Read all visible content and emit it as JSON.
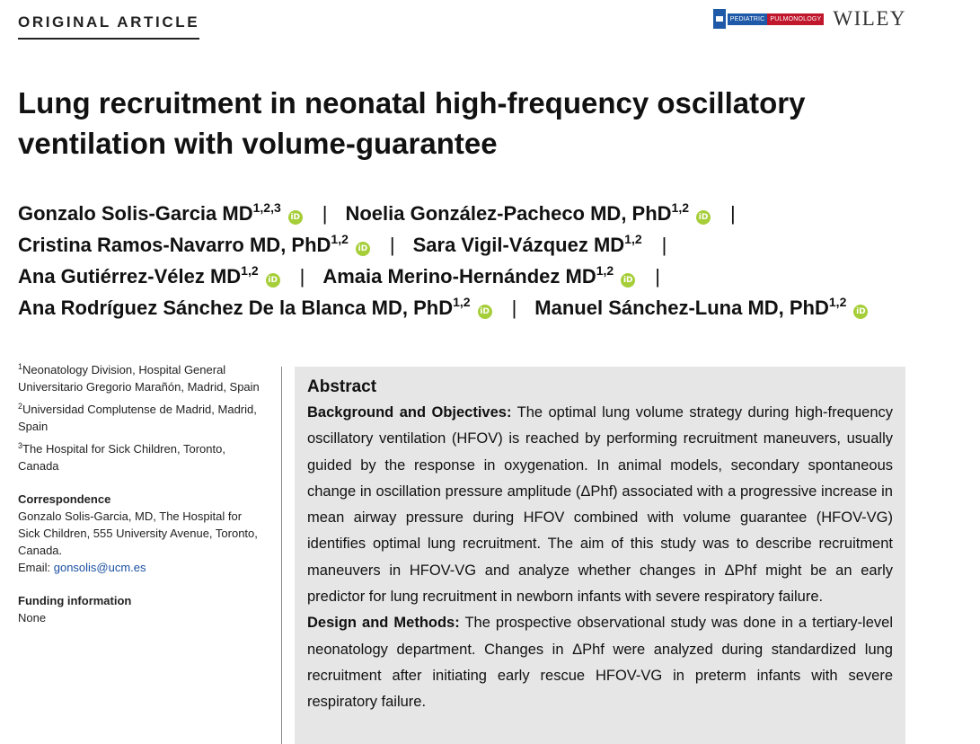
{
  "header": {
    "article_type": "ORIGINAL ARTICLE",
    "journal_part1": "PEDIATRIC",
    "journal_part2": "PULMONOLOGY",
    "publisher": "WILEY"
  },
  "title": "Lung recruitment in neonatal high-frequency oscillatory ventilation with volume-guarantee",
  "authors": [
    {
      "name": "Gonzalo Solis-Garcia MD",
      "sup": "1,2,3",
      "orcid": true
    },
    {
      "name": "Noelia González-Pacheco MD, PhD",
      "sup": "1,2",
      "orcid": true
    },
    {
      "name": "Cristina Ramos-Navarro MD, PhD",
      "sup": "1,2",
      "orcid": true
    },
    {
      "name": "Sara Vigil-Vázquez MD",
      "sup": "1,2",
      "orcid": false
    },
    {
      "name": "Ana Gutiérrez-Vélez MD",
      "sup": "1,2",
      "orcid": true
    },
    {
      "name": "Amaia Merino-Hernández MD",
      "sup": "1,2",
      "orcid": true
    },
    {
      "name": "Ana Rodríguez Sánchez De la Blanca MD, PhD",
      "sup": "1,2",
      "orcid": true
    },
    {
      "name": "Manuel Sánchez-Luna MD, PhD",
      "sup": "1,2",
      "orcid": true
    }
  ],
  "orcid_icon_text": "iD",
  "separator": "|",
  "affiliations": [
    {
      "num": "1",
      "text": "Neonatology Division, Hospital General Universitario Gregorio Marañón, Madrid, Spain"
    },
    {
      "num": "2",
      "text": "Universidad Complutense de Madrid, Madrid, Spain"
    },
    {
      "num": "3",
      "text": "The Hospital for Sick Children, Toronto, Canada"
    }
  ],
  "correspondence": {
    "heading": "Correspondence",
    "text": "Gonzalo Solis-Garcia, MD, The Hospital for Sick Children, 555 University Avenue, Toronto, Canada.",
    "email_label": "Email: ",
    "email": "gonsolis@ucm.es"
  },
  "funding": {
    "heading": "Funding information",
    "text": "None"
  },
  "abstract": {
    "heading": "Abstract",
    "background_label": "Background and Objectives:",
    "background_text": "The optimal lung volume strategy during high-frequency oscillatory ventilation (HFOV) is reached by performing recruitment maneuvers, usually guided by the response in oxygenation. In animal models, secondary spontaneous change in oscillation pressure amplitude (ΔPhf) associated with a progressive increase in mean airway pressure during HFOV combined with volume guarantee (HFOV-VG) identifies optimal lung recruitment. The aim of this study was to describe recruitment maneuvers in HFOV-VG and analyze whether changes in ΔPhf might be an early predictor for lung recruitment in newborn infants with severe respiratory failure.",
    "methods_label": "Design and Methods:",
    "methods_text": "The prospective observational study was done in a tertiary-level neonatology department. Changes in ΔPhf were analyzed during standardized lung recruitment after initiating early rescue HFOV-VG in preterm infants with severe respiratory failure."
  },
  "colors": {
    "orcid_green": "#a6ce39",
    "abstract_bg": "#e6e6e6",
    "journal_blue": "#1f5aa8",
    "journal_red": "#c0172d",
    "link_blue": "#1a4fa0"
  }
}
